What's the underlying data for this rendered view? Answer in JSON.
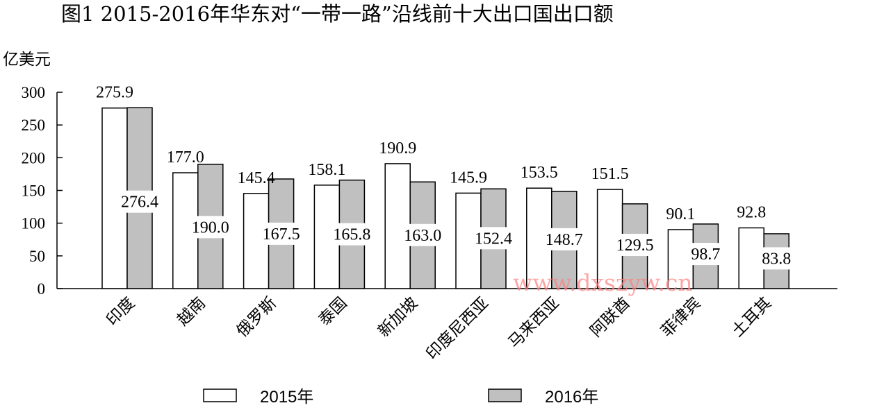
{
  "chart_data": {
    "type": "bar",
    "title": "图1  2015-2016年华东对“一带一路”沿线前十大出口国出口额",
    "ylabel": "亿美元",
    "ylim": [
      0,
      300
    ],
    "yticks": [
      0,
      50,
      100,
      150,
      200,
      250,
      300
    ],
    "categories": [
      "印度",
      "越南",
      "俄罗斯",
      "泰国",
      "新加坡",
      "印度尼西亚",
      "马来西亚",
      "阿联酋",
      "菲律宾",
      "土耳其"
    ],
    "series": [
      {
        "name": "2015年",
        "values": [
          275.9,
          177.0,
          145.4,
          158.1,
          190.9,
          145.9,
          153.5,
          151.5,
          90.1,
          92.8
        ],
        "labels": [
          "275.9",
          "177.0",
          "145.4",
          "158.1",
          "190.9",
          "145.9",
          "153.5",
          "151.5",
          "90.1",
          "92.8"
        ],
        "color": "#ffffff"
      },
      {
        "name": "2016年",
        "values": [
          276.4,
          190.0,
          167.5,
          165.8,
          163.0,
          152.4,
          148.7,
          129.5,
          98.7,
          83.8
        ],
        "labels": [
          "276.4",
          "190.0",
          "167.5",
          "165.8",
          "163.0",
          "152.4",
          "148.7",
          "129.5",
          "98.7",
          "83.8"
        ],
        "color": "#c0c0c0"
      }
    ],
    "legend": "bottom",
    "grid": false
  },
  "watermark": "www.dxszyw.cn"
}
